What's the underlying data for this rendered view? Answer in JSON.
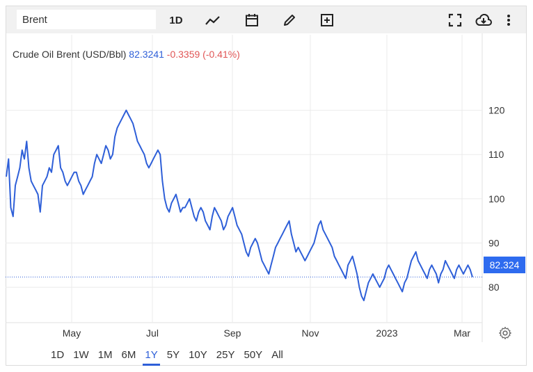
{
  "toolbar": {
    "symbol_value": "Brent",
    "interval_label": "1D",
    "icons": [
      "line-chart-icon",
      "calendar-icon",
      "pencil-icon",
      "add-box-icon",
      "fullscreen-icon",
      "cloud-download-icon",
      "more-vert-icon"
    ]
  },
  "header": {
    "name": "Crude Oil Brent (USD/Bbl)",
    "value": "82.3241",
    "change": "-0.3359 (-0.41%)"
  },
  "last_price_label": "82.324",
  "ranges": [
    "1D",
    "1W",
    "1M",
    "6M",
    "1Y",
    "5Y",
    "10Y",
    "25Y",
    "50Y",
    "All"
  ],
  "active_range": "1Y",
  "colors": {
    "line": "#2e5fd8",
    "accent": "#2e6bef",
    "negative": "#e05555"
  },
  "chart_data": {
    "type": "line",
    "series": [
      {
        "values": [
          105,
          109,
          98,
          96,
          103,
          105,
          107,
          111,
          109,
          113,
          107,
          104,
          103,
          102,
          101,
          97,
          103,
          104,
          105,
          107,
          106,
          110,
          111,
          112,
          107,
          106,
          104,
          103,
          104,
          105,
          106,
          106,
          104,
          103,
          101,
          102,
          103,
          104,
          105,
          108,
          110,
          109,
          108,
          110,
          112,
          111,
          109,
          110,
          114,
          116,
          117,
          118,
          119,
          120,
          119,
          118,
          117,
          115,
          113,
          112,
          111,
          110,
          108,
          107,
          108,
          109,
          110,
          111,
          110,
          104,
          100,
          98,
          97,
          99,
          100,
          101,
          99,
          97,
          98,
          98,
          99,
          100,
          98,
          96,
          95,
          97,
          98,
          97,
          95,
          94,
          93,
          96,
          98,
          97,
          96,
          95,
          93,
          94,
          96,
          97,
          98,
          96,
          94,
          93,
          92,
          90,
          88,
          87,
          89,
          90,
          91,
          90,
          88,
          86,
          85,
          84,
          83,
          85,
          87,
          89,
          90,
          91,
          92,
          93,
          94,
          95,
          92,
          90,
          88,
          89,
          88,
          87,
          86,
          87,
          88,
          89,
          90,
          92,
          94,
          95,
          93,
          92,
          91,
          90,
          89,
          87,
          86,
          85,
          84,
          83,
          82,
          85,
          86,
          87,
          85,
          83,
          80,
          78,
          77,
          79,
          81,
          82,
          83,
          82,
          81,
          80,
          81,
          82,
          84,
          85,
          84,
          83,
          82,
          81,
          80,
          79,
          81,
          82,
          84,
          86,
          87,
          88,
          86,
          85,
          84,
          83,
          82,
          84,
          85,
          84,
          83,
          81,
          83,
          84,
          86,
          85,
          84,
          83,
          82,
          84,
          85,
          84,
          83,
          84,
          85,
          84,
          82.3
        ]
      }
    ],
    "x_ticks": [
      "May",
      "Jul",
      "Sep",
      "Nov",
      "2023",
      "Mar"
    ],
    "y_ticks": [
      80,
      90,
      100,
      110,
      120
    ],
    "ylim": [
      72,
      130
    ],
    "grid": true,
    "last_value": 82.324
  }
}
